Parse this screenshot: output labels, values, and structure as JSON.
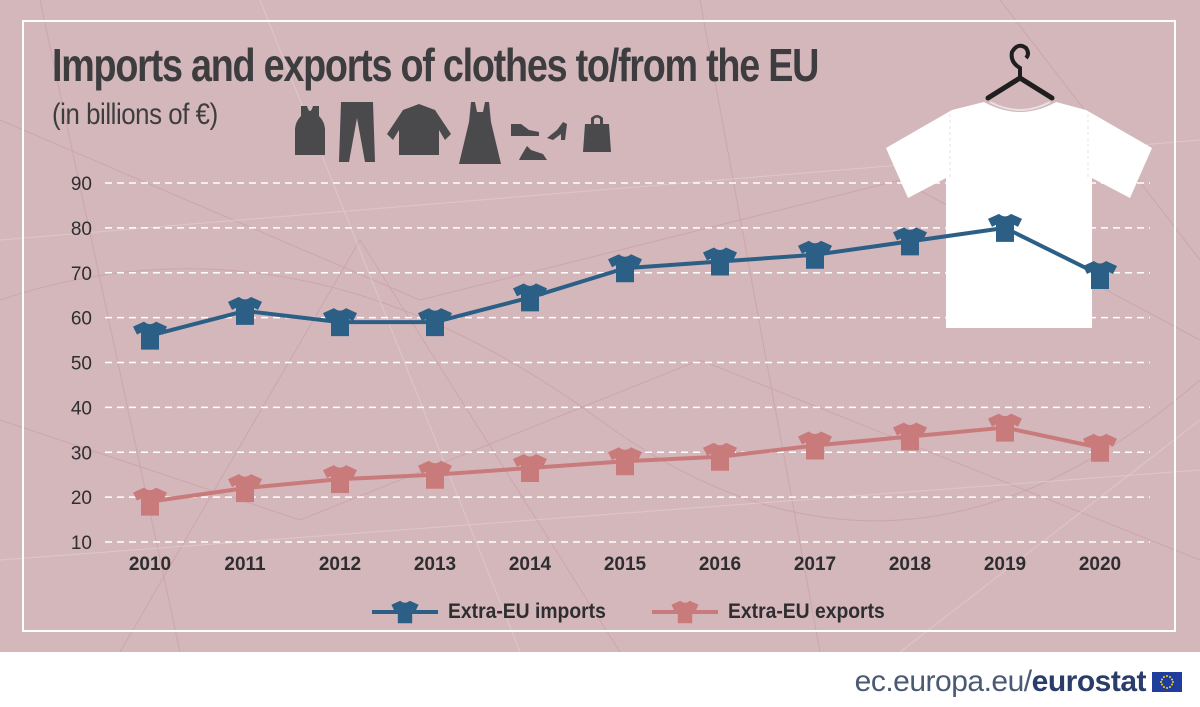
{
  "title": "Imports and exports of clothes to/from the EU",
  "subtitle": "(in billions of €)",
  "colors": {
    "background": "#d4b7bb",
    "imports": "#2c5f86",
    "exports": "#c97b7b",
    "grid": "#ffffff",
    "text": "#2e2e30"
  },
  "icons": [
    "tank-top-icon",
    "trousers-icon",
    "sweater-icon",
    "dress-icon",
    "shoes-icon",
    "handbag-icon",
    "hanger-shirt-icon"
  ],
  "chart_data": {
    "type": "line",
    "title": "Imports and exports of clothes to/from the EU",
    "ylabel": "in billions of €",
    "xlabel": "",
    "categories": [
      "2010",
      "2011",
      "2012",
      "2013",
      "2014",
      "2015",
      "2016",
      "2017",
      "2018",
      "2019",
      "2020"
    ],
    "ylim": [
      10,
      90
    ],
    "yticks": [
      10,
      20,
      30,
      40,
      50,
      60,
      70,
      80,
      90
    ],
    "grid": true,
    "legend_position": "bottom-center",
    "series": [
      {
        "name": "Extra-EU imports",
        "color": "#2c5f86",
        "values": [
          56,
          61.5,
          59,
          59,
          64.5,
          71,
          72.5,
          74,
          77,
          80,
          69.5
        ]
      },
      {
        "name": "Extra-EU exports",
        "color": "#c97b7b",
        "values": [
          19,
          22,
          24,
          25,
          26.5,
          28,
          29,
          31.5,
          33.5,
          35.5,
          31
        ]
      }
    ]
  },
  "footer": {
    "domain": "ec.europa.eu/",
    "brand": "eurostat"
  }
}
